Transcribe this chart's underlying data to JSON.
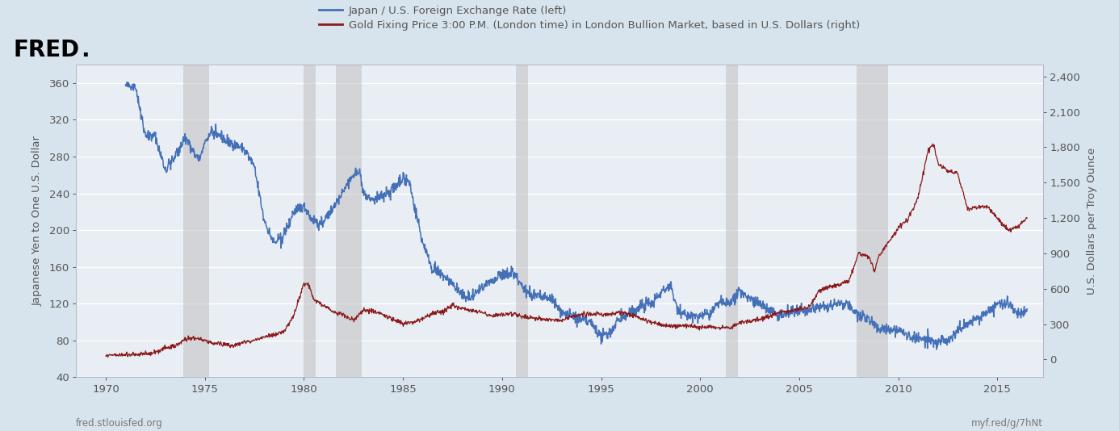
{
  "legend_blue": "Japan / U.S. Foreign Exchange Rate (left)",
  "legend_red": "Gold Fixing Price 3:00 P.M. (London time) in London Bullion Market, based in U.S. Dollars (right)",
  "ylabel_left": "Japanese Yen to One U.S. Dollar",
  "ylabel_right": "U.S. Dollars per Troy Ounce",
  "footer_left": "fred.stlouisfed.org",
  "footer_right": "myf.red/g/7hNt",
  "background_outer": "#d8e4ed",
  "background_plot": "#e8eef4",
  "grid_color": "#ffffff",
  "blue_color": "#4470b8",
  "red_color": "#8b1a1a",
  "recession_color": "#c0c0c0",
  "recession_alpha": 0.55,
  "ylim_left": [
    40,
    380
  ],
  "ylim_right": [
    -150,
    2500
  ],
  "yticks_left": [
    40,
    80,
    120,
    160,
    200,
    240,
    280,
    320,
    360
  ],
  "yticks_right": [
    0,
    300,
    600,
    900,
    1200,
    1500,
    1800,
    2100,
    2400
  ],
  "xticks": [
    1970,
    1975,
    1980,
    1985,
    1990,
    1995,
    2000,
    2005,
    2010,
    2015
  ],
  "xlim": [
    1968.5,
    2017.3
  ],
  "recession_bands": [
    [
      1973.9,
      1975.2
    ],
    [
      1980.0,
      1980.6
    ],
    [
      1981.6,
      1982.9
    ],
    [
      1990.7,
      1991.3
    ],
    [
      2001.3,
      2001.9
    ],
    [
      2007.9,
      2009.5
    ]
  ],
  "figsize": [
    13.86,
    5.34
  ],
  "dpi": 100
}
